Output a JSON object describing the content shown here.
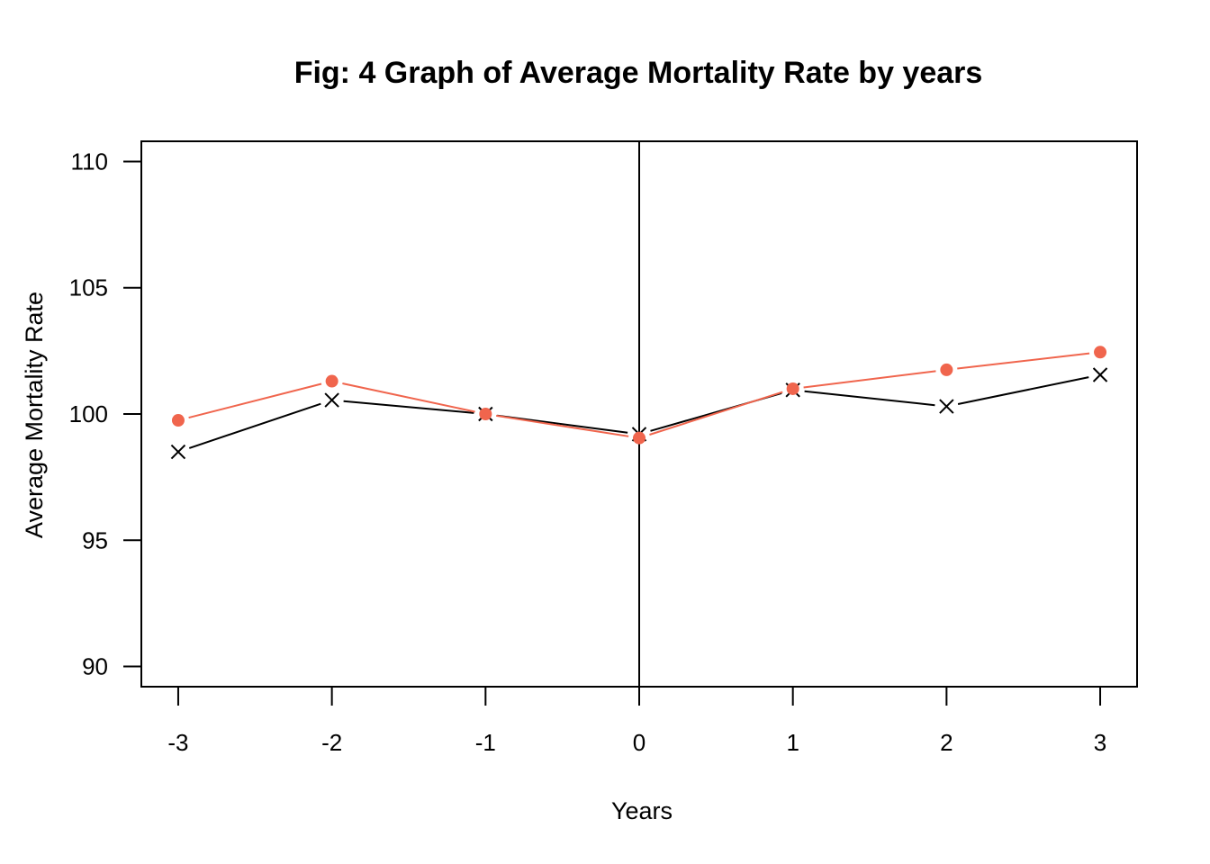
{
  "chart_data": {
    "type": "line",
    "title": "Fig: 4 Graph of Average Mortality Rate by years",
    "xlabel": "Years",
    "ylabel": "Average Mortality Rate",
    "x": [
      -3,
      -2,
      -1,
      0,
      1,
      2,
      3
    ],
    "x_tick_labels": [
      "-3",
      "-2",
      "-1",
      "0",
      "1",
      "2",
      "3"
    ],
    "y_tick_labels": [
      "90",
      "95",
      "100",
      "105",
      "110"
    ],
    "y_ticks": [
      90,
      95,
      100,
      105,
      110
    ],
    "xlim": [
      -3.24,
      3.24
    ],
    "ylim": [
      89.2,
      110.8
    ],
    "grid": false,
    "legend": "none",
    "reference_line": {
      "x": 0
    },
    "series": [
      {
        "values": [
          98.5,
          100.55,
          100.0,
          99.2,
          100.95,
          100.3,
          101.55
        ],
        "color": "#000000",
        "marker": "x"
      },
      {
        "values": [
          99.75,
          101.3,
          100.0,
          99.05,
          101.0,
          101.75,
          102.45
        ],
        "color": "#f0654d",
        "marker": "circle"
      }
    ]
  }
}
